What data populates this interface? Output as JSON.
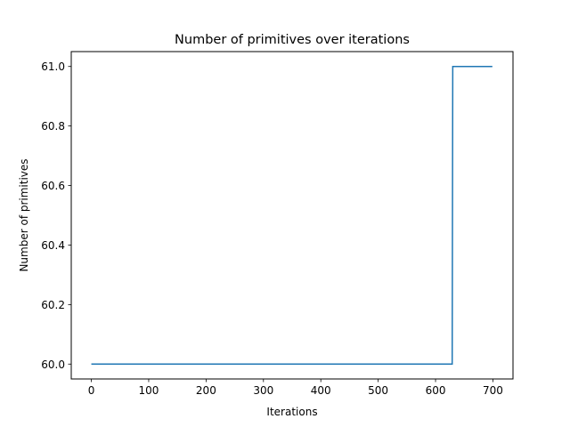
{
  "chart_data": {
    "type": "line",
    "title": "Number of primitives over iterations",
    "xlabel": "Iterations",
    "ylabel": "Number of primitives",
    "xlim": [
      -35,
      735
    ],
    "ylim": [
      59.95,
      61.05
    ],
    "xticks": [
      0,
      100,
      200,
      300,
      400,
      500,
      600,
      700
    ],
    "xtick_labels": [
      "0",
      "100",
      "200",
      "300",
      "400",
      "500",
      "600",
      "700"
    ],
    "yticks": [
      60.0,
      60.2,
      60.4,
      60.6,
      60.8,
      61.0
    ],
    "ytick_labels": [
      "60.0",
      "60.2",
      "60.4",
      "60.6",
      "60.8",
      "61.0"
    ],
    "grid": false,
    "series": [
      {
        "color": "#1f77b4",
        "x": [
          0,
          629,
          630,
          699
        ],
        "y": [
          60,
          60,
          61,
          61
        ]
      }
    ]
  }
}
